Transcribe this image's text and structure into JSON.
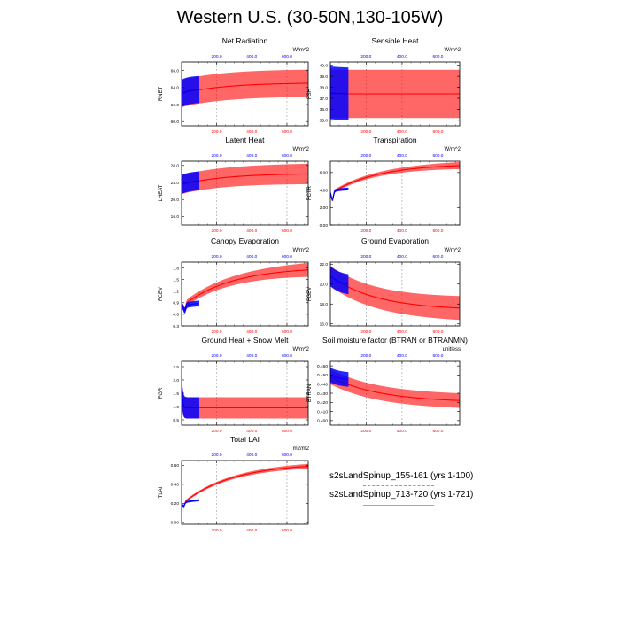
{
  "page_title": "Western U.S. (30-50N,130-105W)",
  "legend": {
    "run1": "s2sLandSpinup_155-161 (yrs 1-100)",
    "run2": "s2sLandSpinup_713-720 (yrs 1-721)"
  },
  "colors": {
    "run1": "#0000ff",
    "run2": "#ff0000",
    "grid": "#999999"
  },
  "chart_data": [
    {
      "type": "line",
      "title": "Net Radiation",
      "ylabel": "RNET",
      "units": "W/m^2",
      "x_bottom": {
        "range": [
          1,
          721
        ],
        "ticks": [
          "200.0",
          "400.0",
          "600.0"
        ]
      },
      "x_top": {
        "range": [
          1,
          721
        ],
        "ticks": [
          "200.0",
          "400.0",
          "600.0"
        ]
      },
      "ylim": [
        59.5,
        67.0
      ],
      "yticks": [
        "60.0",
        "62.0",
        "64.0",
        "66.0"
      ],
      "ytick_values": [
        60,
        62,
        64,
        66
      ],
      "series": [
        {
          "name": "s2sLandSpinup_155-161 (yrs 1-100)",
          "years": [
            1,
            100
          ],
          "mean_start": 63.3,
          "mean_end": 63.8,
          "amp_start": 1.6,
          "amp_end": 1.5,
          "tau": 40
        },
        {
          "name": "s2sLandSpinup_713-720 (yrs 1-721)",
          "years": [
            1,
            721
          ],
          "mean_start": 63.3,
          "mean_end": 64.5,
          "amp_start": 1.6,
          "amp_end": 1.6,
          "tau": 250
        }
      ]
    },
    {
      "type": "line",
      "title": "Sensible Heat",
      "ylabel": "FSH",
      "units": "W/m^2",
      "x_bottom": {
        "range": [
          1,
          721
        ],
        "ticks": [
          "200.0",
          "400.0",
          "600.0"
        ]
      },
      "x_top": {
        "range": [
          1,
          721
        ],
        "ticks": [
          "200.0",
          "400.0",
          "600.0"
        ]
      },
      "ylim": [
        34.5,
        40.3
      ],
      "yticks": [
        "35.0",
        "36.0",
        "37.0",
        "38.0",
        "39.0",
        "40.0"
      ],
      "ytick_values": [
        35,
        36,
        37,
        38,
        39,
        40
      ],
      "series": [
        {
          "name": "s2sLandSpinup_155-161 (yrs 1-100)",
          "years": [
            1,
            100
          ],
          "mean_start": 37.5,
          "mean_end": 37.4,
          "amp_start": 2.4,
          "amp_end": 2.3,
          "tau": 60
        },
        {
          "name": "s2sLandSpinup_713-720 (yrs 1-721)",
          "years": [
            1,
            721
          ],
          "mean_start": 37.4,
          "mean_end": 37.4,
          "amp_start": 2.2,
          "amp_end": 2.2,
          "tau": 300
        }
      ]
    },
    {
      "type": "line",
      "title": "Latent Heat",
      "ylabel": "LHEAT",
      "units": "W/m^2",
      "x_bottom": {
        "range": [
          1,
          721
        ],
        "ticks": [
          "200.0",
          "400.0",
          "600.0"
        ]
      },
      "x_top": {
        "range": [
          1,
          721
        ],
        "ticks": [
          "200.0",
          "400.0",
          "600.0"
        ]
      },
      "ylim": [
        14.0,
        29.0
      ],
      "yticks": [
        "16.0",
        "20.0",
        "24.0",
        "28.0"
      ],
      "ytick_values": [
        16,
        20,
        24,
        28
      ],
      "series": [
        {
          "name": "s2sLandSpinup_155-161 (yrs 1-100)",
          "years": [
            1,
            100
          ],
          "mean_start": 23.5,
          "mean_end": 24.5,
          "amp_start": 2.2,
          "amp_end": 2.3,
          "tau": 50
        },
        {
          "name": "s2sLandSpinup_713-720 (yrs 1-721)",
          "years": [
            1,
            721
          ],
          "mean_start": 23.5,
          "mean_end": 26.0,
          "amp_start": 2.2,
          "amp_end": 2.4,
          "tau": 250
        }
      ]
    },
    {
      "type": "line",
      "title": "Transpiration",
      "ylabel": "FCTR",
      "units": "W/m^2",
      "x_bottom": {
        "range": [
          1,
          721
        ],
        "ticks": [
          "200.0",
          "400.0",
          "600.0"
        ]
      },
      "x_top": {
        "range": [
          1,
          721
        ],
        "ticks": [
          "200.0",
          "400.0",
          "600.0"
        ]
      },
      "ylim": [
        0,
        7.3
      ],
      "yticks": [
        "0.00",
        "2.00",
        "4.00",
        "6.00"
      ],
      "ytick_values": [
        0,
        2,
        4,
        6
      ],
      "dip": {
        "year": 12,
        "value": 2.9
      },
      "series": [
        {
          "name": "s2sLandSpinup_155-161 (yrs 1-100)",
          "years": [
            1,
            100
          ],
          "mean_start": 3.8,
          "mean_end": 4.2,
          "amp_start": 0.15,
          "amp_end": 0.2,
          "tau": 60
        },
        {
          "name": "s2sLandSpinup_713-720 (yrs 1-721)",
          "years": [
            1,
            721
          ],
          "mean_start": 3.6,
          "mean_end": 6.8,
          "amp_start": 0.15,
          "amp_end": 0.4,
          "tau": 260
        }
      ]
    },
    {
      "type": "line",
      "title": "Canopy Evaporation",
      "ylabel": "FCEV",
      "units": "W/m^2",
      "x_bottom": {
        "range": [
          1,
          721
        ],
        "ticks": [
          "200.0",
          "400.0",
          "600.0"
        ]
      },
      "x_top": {
        "range": [
          1,
          721
        ],
        "ticks": [
          "200.0",
          "400.0",
          "600.0"
        ]
      },
      "ylim": [
        0.3,
        1.95
      ],
      "yticks": [
        "0.3",
        "0.6",
        "0.9",
        "1.2",
        "1.5",
        "1.8"
      ],
      "ytick_values": [
        0.3,
        0.6,
        0.9,
        1.2,
        1.5,
        1.8
      ],
      "dip": {
        "year": 18,
        "value": 0.7
      },
      "series": [
        {
          "name": "s2sLandSpinup_155-161 (yrs 1-100)",
          "years": [
            1,
            100
          ],
          "mean_start": 0.8,
          "mean_end": 0.9,
          "amp_start": 0.07,
          "amp_end": 0.1,
          "tau": 60
        },
        {
          "name": "s2sLandSpinup_713-720 (yrs 1-721)",
          "years": [
            1,
            721
          ],
          "mean_start": 0.8,
          "mean_end": 1.75,
          "amp_start": 0.07,
          "amp_end": 0.18,
          "tau": 280
        }
      ]
    },
    {
      "type": "line",
      "title": "Ground Evaporation",
      "ylabel": "FGEV",
      "units": "W/m^2",
      "x_bottom": {
        "range": [
          1,
          721
        ],
        "ticks": [
          "200.0",
          "400.0",
          "600.0"
        ]
      },
      "x_top": {
        "range": [
          1,
          721
        ],
        "ticks": [
          "200.0",
          "400.0",
          "600.0"
        ]
      },
      "ylim": [
        15.8,
        22.2
      ],
      "yticks": [
        "16.0",
        "18.0",
        "20.0",
        "22.0"
      ],
      "ytick_values": [
        16,
        18,
        20,
        22
      ],
      "series": [
        {
          "name": "s2sLandSpinup_155-161 (yrs 1-100)",
          "years": [
            1,
            100
          ],
          "mean_start": 20.8,
          "mean_end": 19.8,
          "amp_start": 1.0,
          "amp_end": 1.0,
          "tau": 60
        },
        {
          "name": "s2sLandSpinup_713-720 (yrs 1-721)",
          "years": [
            1,
            721
          ],
          "mean_start": 20.8,
          "mean_end": 17.6,
          "amp_start": 1.0,
          "amp_end": 1.2,
          "tau": 260
        }
      ]
    },
    {
      "type": "line",
      "title": "Ground Heat + Snow Melt",
      "ylabel": "FGR",
      "units": "W/m^2",
      "x_bottom": {
        "range": [
          1,
          721
        ],
        "ticks": [
          "200.0",
          "400.0",
          "600.0"
        ]
      },
      "x_top": {
        "range": [
          1,
          721
        ],
        "ticks": [
          "200.0",
          "400.0",
          "600.0"
        ]
      },
      "ylim": [
        0.3,
        2.7
      ],
      "yticks": [
        "0.5",
        "1.0",
        "1.5",
        "2.0",
        "2.5"
      ],
      "ytick_values": [
        0.5,
        1.0,
        1.5,
        2.0,
        2.5
      ],
      "series": [
        {
          "name": "s2sLandSpinup_155-161 (yrs 1-100)",
          "years": [
            1,
            100
          ],
          "mean_start": 1.9,
          "mean_end": 0.95,
          "amp_start": 0.4,
          "amp_end": 0.4,
          "tau": 5
        },
        {
          "name": "s2sLandSpinup_713-720 (yrs 1-721)",
          "years": [
            1,
            721
          ],
          "mean_start": 1.9,
          "mean_end": 0.95,
          "amp_start": 0.4,
          "amp_end": 0.4,
          "tau": 5
        }
      ]
    },
    {
      "type": "line",
      "title": "Soil moisture factor (BTRAN or BTRANMN)",
      "ylabel": "BTRAN",
      "units": "unitless",
      "x_bottom": {
        "range": [
          1,
          721
        ],
        "ticks": [
          "200.0",
          "400.0",
          "600.0"
        ]
      },
      "x_top": {
        "range": [
          1,
          721
        ],
        "ticks": [
          "200.0",
          "400.0",
          "600.0"
        ]
      },
      "ylim": [
        0.395,
        0.465
      ],
      "yticks": [
        "0.400",
        "0.410",
        "0.420",
        "0.430",
        "0.440",
        "0.450",
        "0.460"
      ],
      "ytick_values": [
        0.4,
        0.41,
        0.42,
        0.43,
        0.44,
        0.45,
        0.46
      ],
      "series": [
        {
          "name": "s2sLandSpinup_155-161 (yrs 1-100)",
          "years": [
            1,
            100
          ],
          "mean_start": 0.45,
          "mean_end": 0.444,
          "amp_start": 0.008,
          "amp_end": 0.008,
          "tau": 60
        },
        {
          "name": "s2sLandSpinup_713-720 (yrs 1-721)",
          "years": [
            1,
            721
          ],
          "mean_start": 0.448,
          "mean_end": 0.422,
          "amp_start": 0.008,
          "amp_end": 0.008,
          "tau": 280
        }
      ]
    },
    {
      "type": "line",
      "title": "Total LAI",
      "ylabel": "TLAI",
      "units": "m2/m2",
      "x_bottom": {
        "range": [
          1,
          721
        ],
        "ticks": [
          "200.0",
          "400.0",
          "600.0"
        ]
      },
      "x_top": {
        "range": [
          1,
          721
        ],
        "ticks": [
          "200.0",
          "400.0",
          "600.0"
        ]
      },
      "ylim": [
        -0.02,
        0.65
      ],
      "yticks": [
        "0.00",
        "0.20",
        "0.40",
        "0.60"
      ],
      "ytick_values": [
        0.0,
        0.2,
        0.4,
        0.6
      ],
      "dip": {
        "year": 12,
        "value": 0.17
      },
      "series": [
        {
          "name": "s2sLandSpinup_155-161 (yrs 1-100)",
          "years": [
            1,
            100
          ],
          "mean_start": 0.2,
          "mean_end": 0.24,
          "amp_start": 0.01,
          "amp_end": 0.012,
          "tau": 60
        },
        {
          "name": "s2sLandSpinup_713-720 (yrs 1-721)",
          "years": [
            1,
            721
          ],
          "mean_start": 0.19,
          "mean_end": 0.59,
          "amp_start": 0.01,
          "amp_end": 0.025,
          "tau": 280
        }
      ]
    }
  ]
}
